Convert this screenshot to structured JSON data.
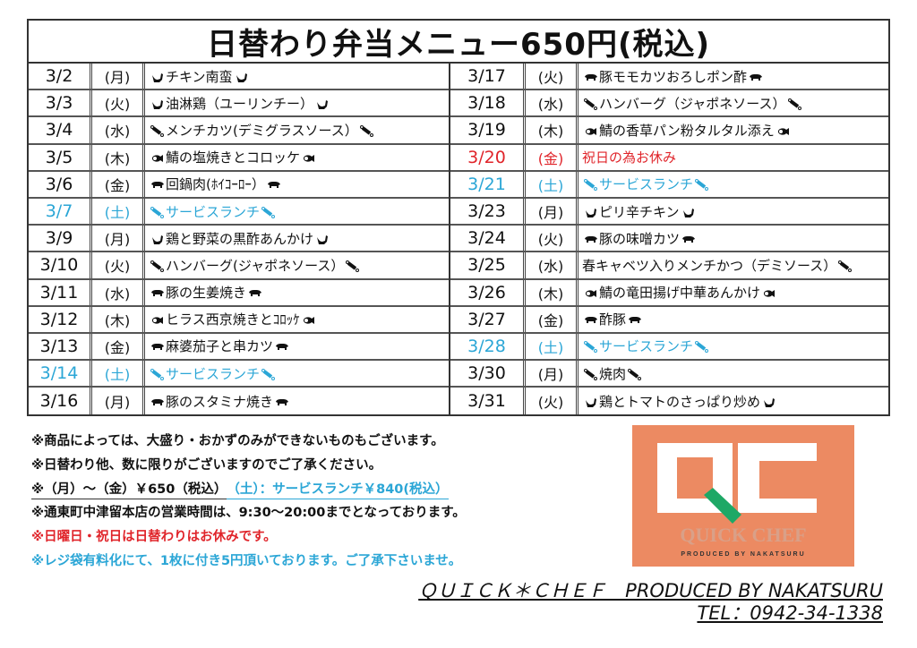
{
  "title": "日替わり弁当メニュー650円(税込)",
  "colors": {
    "service": "#2ba6d6",
    "holiday": "#e0242a",
    "logo_bg": "#ec8a62",
    "logo_accent": "#1ea866"
  },
  "left_rows": [
    {
      "date": "3/2",
      "day": "(月)",
      "menu": "チキン南蛮",
      "icon": "chicken-icon"
    },
    {
      "date": "3/3",
      "day": "(火)",
      "menu": "油淋鶏（ユーリンチー）",
      "icon": "chicken-icon"
    },
    {
      "date": "3/4",
      "day": "(水)",
      "menu": "メンチカツ(デミグラスソース）",
      "icon": "meat-bone-icon"
    },
    {
      "date": "3/5",
      "day": "(木)",
      "menu": "鯖の塩焼きとコロッケ",
      "icon": "fish-icon"
    },
    {
      "date": "3/6",
      "day": "(金)",
      "menu": "回鍋肉(ﾎｲｺｰﾛｰ）",
      "icon": "pig-icon"
    },
    {
      "date": "3/7",
      "day": "(土)",
      "menu": "サービスランチ",
      "icon": "meat-bone-icon",
      "style": "blue"
    },
    {
      "date": "3/9",
      "day": "(月)",
      "menu": "鶏と野菜の黒酢あんかけ",
      "icon": "chicken-icon"
    },
    {
      "date": "3/10",
      "day": "(火)",
      "menu": "ハンバーグ(ジャポネソース）",
      "icon": "meat-bone-icon"
    },
    {
      "date": "3/11",
      "day": "(水)",
      "menu": "豚の生姜焼き",
      "icon": "pig-icon"
    },
    {
      "date": "3/12",
      "day": "(木)",
      "menu": "ヒラス西京焼きとｺﾛｯｹ",
      "icon": "fish-icon"
    },
    {
      "date": "3/13",
      "day": "(金)",
      "menu": "麻婆茄子と串カツ",
      "icon": "pig-icon"
    },
    {
      "date": "3/14",
      "day": "(土)",
      "menu": "サービスランチ",
      "icon": "meat-bone-icon",
      "style": "blue"
    },
    {
      "date": "3/16",
      "day": "(月)",
      "menu": "豚のスタミナ焼き",
      "icon": "pig-icon"
    }
  ],
  "right_rows": [
    {
      "date": "3/17",
      "day": "(火)",
      "menu": "豚モモカツおろしポン酢",
      "icon": "pig-icon"
    },
    {
      "date": "3/18",
      "day": "(水)",
      "menu": "ハンバーグ（ジャポネソース）",
      "icon": "meat-bone-icon"
    },
    {
      "date": "3/19",
      "day": "(木)",
      "menu": "鯖の香草パン粉タルタル添え",
      "icon": "fish-icon"
    },
    {
      "date": "3/20",
      "day": "(金)",
      "menu": "祝日の為お休み",
      "icon": "",
      "style": "red"
    },
    {
      "date": "3/21",
      "day": "(土)",
      "menu": "サービスランチ",
      "icon": "meat-bone-icon",
      "style": "blue"
    },
    {
      "date": "3/23",
      "day": "(月)",
      "menu": "ピリ辛チキン",
      "icon": "chicken-icon"
    },
    {
      "date": "3/24",
      "day": "(火)",
      "menu": "豚の味噌カツ",
      "icon": "pig-icon"
    },
    {
      "date": "3/25",
      "day": "(水)",
      "menu": "春キャベツ入りメンチかつ（デミソース）",
      "icon": "meat-bone-icon",
      "icon_end_only": true
    },
    {
      "date": "3/26",
      "day": "(木)",
      "menu": "鯖の竜田揚げ中華あんかけ",
      "icon": "fish-icon"
    },
    {
      "date": "3/27",
      "day": "(金)",
      "menu": "酢豚",
      "icon": "pig-icon"
    },
    {
      "date": "3/28",
      "day": "(土)",
      "menu": "サービスランチ",
      "icon": "meat-bone-icon",
      "style": "blue"
    },
    {
      "date": "3/30",
      "day": "(月)",
      "menu": "焼肉",
      "icon": "meat-bone-icon"
    },
    {
      "date": "3/31",
      "day": "(火)",
      "menu": "鶏とトマトのさっぱり炒め",
      "icon": "chicken-icon"
    }
  ],
  "notes": {
    "n1": "※商品によっては、大盛り・おかずのみができないものもございます。",
    "n2": "※日替わり他、数に限りがございますのでご了承ください。",
    "n3a": "※（月）～（金）￥650（税込）",
    "n3b": "（土）：サービスランチ￥840(税込）",
    "n4": "※通東町中津留本店の営業時間は、9:30～20:00までとなっております。",
    "n5": "※日曜日・祝日は日替わりはお休みです。",
    "n6": "※レジ袋有料化にて、1枚に付き5円頂いております。ご了承下さいませ。"
  },
  "logo": {
    "letters": "QC",
    "name": "QUICK CHEF",
    "tagline": "PRODUCED BY NAKATSURU"
  },
  "credit": {
    "line1": "ＱＵＩＣＫ＊ＣＨＥＦ　PRODUCED BY NAKATSURU",
    "line2": "TEL：0942-34-1338"
  }
}
